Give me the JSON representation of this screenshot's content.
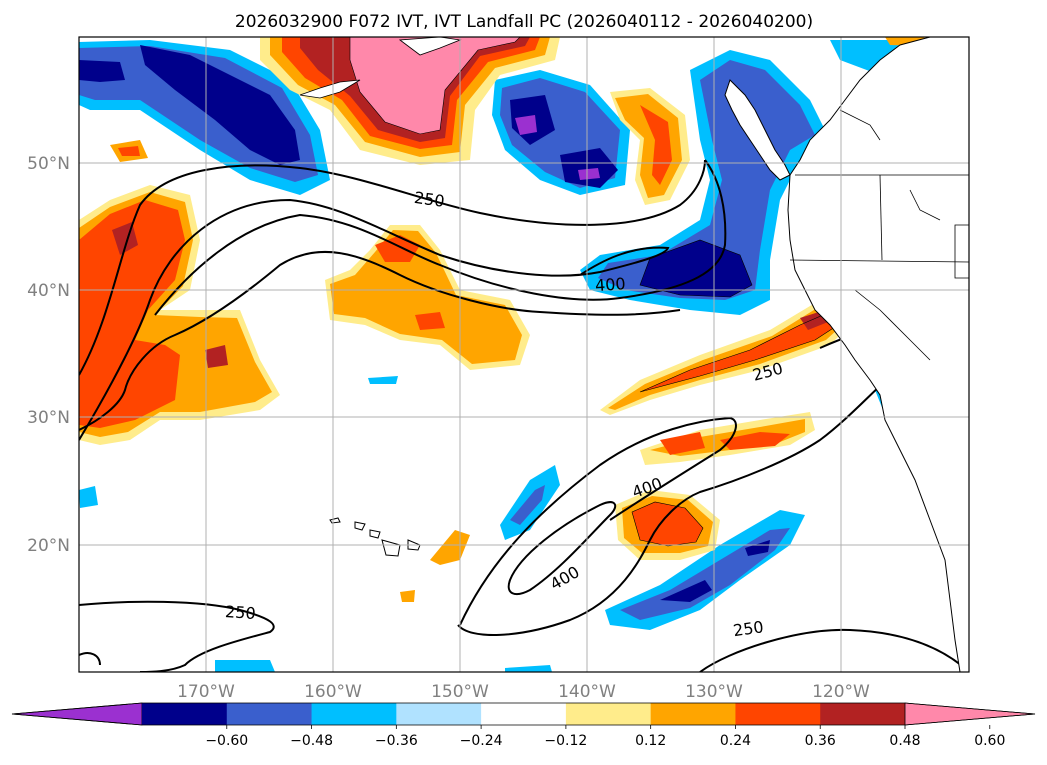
{
  "title": "2026032900 F072 IVT, IVT Landfall PC (2026040112 - 2026040200)",
  "lat_labels": [
    "50°N",
    "40°N",
    "30°N",
    "20°N"
  ],
  "lon_labels": [
    "170°W",
    "160°W",
    "150°W",
    "140°W",
    "130°W",
    "120°W"
  ],
  "contour_labels": [
    "250",
    "400",
    "250",
    "400",
    "400",
    "250",
    "250"
  ],
  "colorbar": {
    "colors": [
      "#9b30d0",
      "#00008b",
      "#3a5fcd",
      "#00bfff",
      "#b0e2ff",
      "#ffffff",
      "#ffec8b",
      "#ffa500",
      "#ff4500",
      "#b22222",
      "#ff88aa"
    ],
    "ticks": [
      "−0.60",
      "−0.48",
      "−0.36",
      "−0.24",
      "−0.12",
      "0.12",
      "0.24",
      "0.36",
      "0.48",
      "0.60"
    ]
  }
}
